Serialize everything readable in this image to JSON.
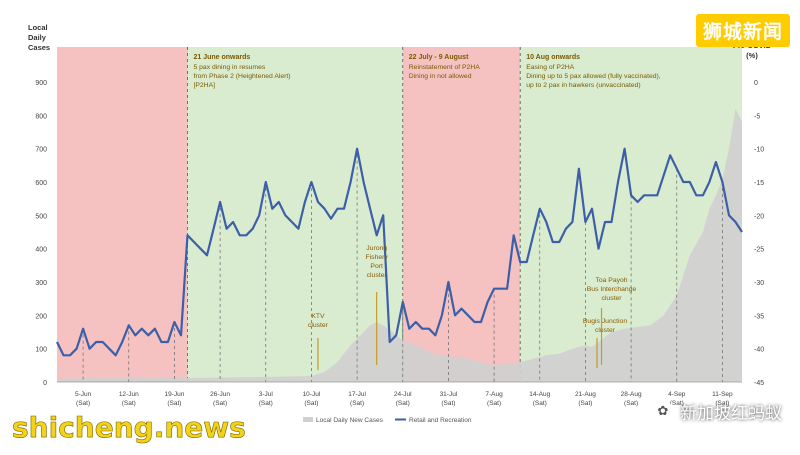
{
  "chart_data": {
    "type": "line",
    "left_axis_label": [
      "Local",
      "Daily",
      "Cases"
    ],
    "right_axis_label": [
      "% change from",
      "Pre-COVID",
      "(%)"
    ],
    "left_ticks": [
      "0",
      "100",
      "200",
      "300",
      "400",
      "500",
      "600",
      "700",
      "800",
      "900"
    ],
    "right_ticks": [
      "-45",
      "-40",
      "-35",
      "-30",
      "-25",
      "-20",
      "-15",
      "-10",
      "-5",
      "0"
    ],
    "ylim_left": [
      0,
      900
    ],
    "ylim_right": [
      -45,
      0
    ],
    "x_ticks": [
      {
        "d": "5-Jun",
        "w": "(Sat)",
        "day": 5
      },
      {
        "d": "12-Jun",
        "w": "(Sat)",
        "day": 12
      },
      {
        "d": "19-Jun",
        "w": "(Sat)",
        "day": 19
      },
      {
        "d": "26-Jun",
        "w": "(Sat)",
        "day": 26
      },
      {
        "d": "3-Jul",
        "w": "(Sat)",
        "day": 33
      },
      {
        "d": "10-Jul",
        "w": "(Sat)",
        "day": 40
      },
      {
        "d": "17-Jul",
        "w": "(Sat)",
        "day": 47
      },
      {
        "d": "24-Jul",
        "w": "(Sat)",
        "day": 54
      },
      {
        "d": "31-Jul",
        "w": "(Sat)",
        "day": 61
      },
      {
        "d": "7-Aug",
        "w": "(Sat)",
        "day": 68
      },
      {
        "d": "14-Aug",
        "w": "(Sat)",
        "day": 75
      },
      {
        "d": "21-Aug",
        "w": "(Sat)",
        "day": 82
      },
      {
        "d": "28-Aug",
        "w": "(Sat)",
        "day": 89
      },
      {
        "d": "4-Sep",
        "w": "(Sat)",
        "day": 96
      },
      {
        "d": "11-Sep",
        "w": "(Sat)",
        "day": 103
      }
    ],
    "x_range": [
      1,
      106
    ],
    "regions": [
      {
        "start": 1,
        "end": 21,
        "color": "#f5c1c1",
        "title": "",
        "lines": []
      },
      {
        "start": 21,
        "end": 54,
        "color": "#d9ecd0",
        "title": "21 June onwards",
        "lines": [
          "5 pax dining in resumes",
          "from Phase 2 (Heightened Alert)",
          "[P2HA]"
        ]
      },
      {
        "start": 54,
        "end": 72,
        "color": "#f5c1c1",
        "title": "22 July - 9 August",
        "lines": [
          "Reinstatement of P2HA",
          "Dining in not allowed"
        ]
      },
      {
        "start": 72,
        "end": 106,
        "color": "#d9ecd0",
        "title": "10 Aug onwards",
        "lines": [
          "Easing of P2HA",
          "Dining up to  5 pax allowed (fully vaccinated),",
          "up to 2 pax in hawkers (unvaccinated)"
        ]
      }
    ],
    "annotations": [
      {
        "lines": [
          "Jurong",
          "Fishery",
          "Port",
          "cluster"
        ],
        "day": 50
      },
      {
        "lines": [
          "KTV",
          "cluster"
        ],
        "day": 41
      },
      {
        "lines": [
          "Toa Payoh",
          "Bus Interchange",
          "cluster"
        ],
        "day": 86
      },
      {
        "lines": [
          "Bugis Junction",
          "cluster"
        ],
        "day": 85
      }
    ],
    "series": [
      {
        "name": "Local Daily New Cases",
        "axis": "left",
        "style": "area",
        "color": "#d0d0d0",
        "x": [
          1,
          10,
          20,
          30,
          40,
          42,
          44,
          46,
          48,
          49,
          50,
          51,
          52,
          53,
          54,
          56,
          58,
          60,
          62,
          64,
          66,
          68,
          70,
          72,
          74,
          76,
          78,
          80,
          82,
          83,
          84,
          86,
          88,
          90,
          92,
          94,
          96,
          98,
          100,
          101,
          102,
          103,
          104,
          105,
          106
        ],
        "values": [
          10,
          14,
          12,
          14,
          18,
          30,
          60,
          110,
          150,
          170,
          180,
          170,
          155,
          140,
          125,
          110,
          90,
          80,
          75,
          70,
          60,
          50,
          55,
          60,
          70,
          80,
          85,
          100,
          110,
          105,
          120,
          150,
          160,
          165,
          170,
          200,
          260,
          380,
          450,
          520,
          560,
          610,
          700,
          820,
          780
        ]
      },
      {
        "name": "Retail and Recreation",
        "axis": "right",
        "style": "line",
        "color": "#3d5fa8",
        "x": [
          1,
          2,
          3,
          4,
          5,
          6,
          7,
          8,
          9,
          10,
          11,
          12,
          13,
          14,
          15,
          16,
          17,
          18,
          19,
          20,
          21,
          22,
          23,
          24,
          25,
          26,
          27,
          28,
          29,
          30,
          31,
          32,
          33,
          34,
          35,
          36,
          37,
          38,
          39,
          40,
          41,
          42,
          43,
          44,
          45,
          46,
          47,
          48,
          49,
          50,
          51,
          52,
          53,
          54,
          55,
          56,
          57,
          58,
          59,
          60,
          61,
          62,
          63,
          64,
          65,
          66,
          67,
          68,
          69,
          70,
          71,
          72,
          73,
          74,
          75,
          76,
          77,
          78,
          79,
          80,
          81,
          82,
          83,
          84,
          85,
          86,
          87,
          88,
          89,
          90,
          91,
          92,
          93,
          94,
          95,
          96,
          97,
          98,
          99,
          100,
          101,
          102,
          103,
          104,
          105,
          106
        ],
        "values": [
          -39,
          -41,
          -41,
          -40,
          -37,
          -40,
          -39,
          -39,
          -40,
          -41,
          -39,
          -36.5,
          -38,
          -37,
          -38,
          -37,
          -39,
          -39,
          -36,
          -38,
          -23,
          -24,
          -25,
          -26,
          -22,
          -18,
          -22,
          -21,
          -23,
          -23,
          -22,
          -20,
          -15,
          -19,
          -18,
          -20,
          -21,
          -22,
          -18,
          -15,
          -18,
          -19,
          -20.5,
          -19,
          -19,
          -15,
          -10,
          -15,
          -19,
          -23,
          -20,
          -39,
          -38,
          -33,
          -37,
          -36,
          -37,
          -37,
          -38,
          -35,
          -30,
          -35,
          -34,
          -35,
          -36,
          -36,
          -33,
          -31,
          -31,
          -31,
          -23,
          -27,
          -27,
          -23,
          -19,
          -21,
          -24,
          -24,
          -22,
          -21,
          -13,
          -21,
          -19,
          -25,
          -21,
          -21,
          -15,
          -10,
          -17,
          -18,
          -17,
          -17,
          -17,
          -14,
          -11,
          -13,
          -15,
          -15,
          -17,
          -17,
          -15,
          -12,
          -15,
          -20,
          -21,
          -22.5
        ]
      }
    ]
  },
  "watermarks": {
    "top_right": "狮城新闻",
    "bottom_left": "shicheng.news",
    "wechat_badge": "✿",
    "wechat_account": "新加坡红蚂蚁"
  }
}
